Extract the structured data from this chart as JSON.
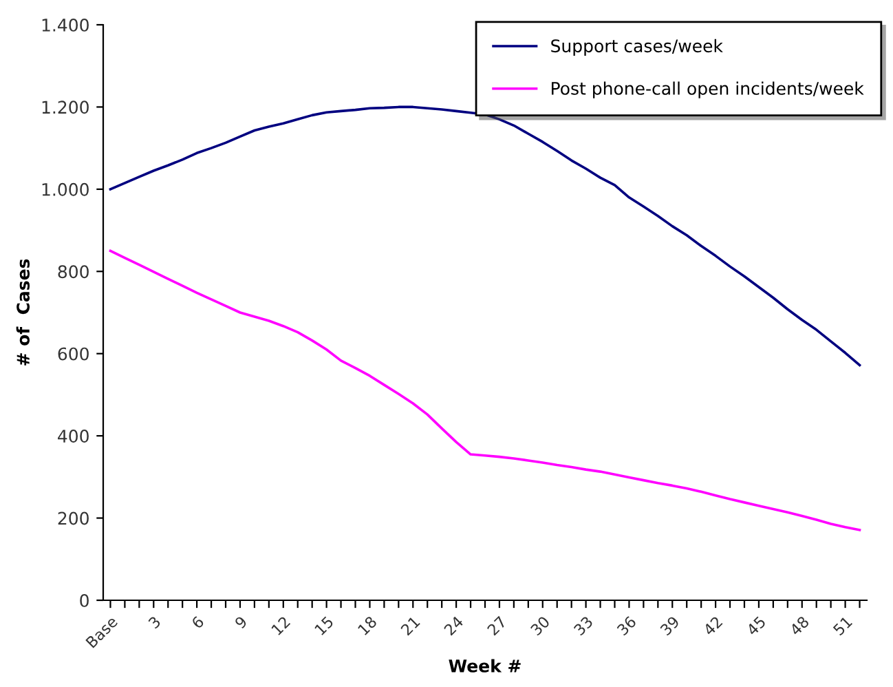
{
  "chart_data": {
    "type": "line",
    "xlabel": "Week #",
    "ylabel": "# of  Cases",
    "categories": [
      "Base",
      null,
      null,
      "3",
      null,
      null,
      "6",
      null,
      null,
      "9",
      null,
      null,
      "12",
      null,
      null,
      "15",
      null,
      null,
      "18",
      null,
      null,
      "21",
      null,
      null,
      "24",
      null,
      null,
      "27",
      null,
      null,
      "30",
      null,
      null,
      "33",
      null,
      null,
      "36",
      null,
      null,
      "39",
      null,
      null,
      "42",
      null,
      null,
      "45",
      null,
      null,
      "48",
      null,
      null,
      "51",
      null
    ],
    "series": [
      {
        "name": "Support cases/week",
        "color": "#000080",
        "values": [
          1000,
          1015,
          1030,
          1045,
          1058,
          1072,
          1088,
          1100,
          1113,
          1128,
          1143,
          1152,
          1160,
          1170,
          1180,
          1187,
          1190,
          1193,
          1197,
          1198,
          1200,
          1200,
          1197,
          1194,
          1190,
          1186,
          1182,
          1170,
          1155,
          1135,
          1115,
          1093,
          1070,
          1050,
          1028,
          1010,
          980,
          958,
          935,
          910,
          888,
          862,
          838,
          812,
          788,
          762,
          736,
          708,
          682,
          658,
          630,
          602,
          572
        ]
      },
      {
        "name": "Post phone-call open incidents/week",
        "color": "#ff00ff",
        "values": [
          850,
          833,
          816,
          799,
          782,
          765,
          748,
          732,
          716,
          700,
          690,
          680,
          667,
          652,
          632,
          610,
          583,
          565,
          546,
          524,
          502,
          479,
          452,
          418,
          385,
          355,
          352,
          349,
          345,
          340,
          335,
          329,
          324,
          318,
          313,
          306,
          299,
          292,
          285,
          279,
          272,
          264,
          255,
          246,
          238,
          230,
          222,
          214,
          205,
          196,
          186,
          178,
          171
        ]
      }
    ],
    "ylim": [
      0,
      1400
    ],
    "yticks": [
      0,
      200,
      400,
      600,
      800,
      {
        "value": 1000,
        "label": "1.000"
      },
      {
        "value": 1200,
        "label": "1.200"
      },
      {
        "value": 1400,
        "label": "1.400"
      }
    ],
    "legend": "top right",
    "grid": false,
    "marker": "none",
    "line_style": "solid"
  }
}
